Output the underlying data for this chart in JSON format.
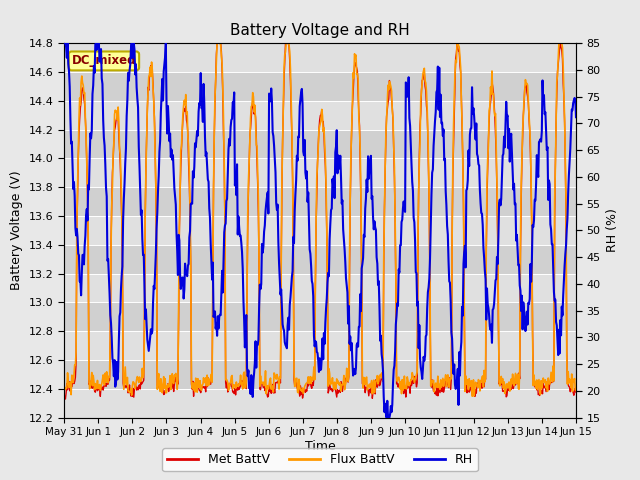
{
  "title": "Battery Voltage and RH",
  "xlabel": "Time",
  "ylabel_left": "Battery Voltage (V)",
  "ylabel_right": "RH (%)",
  "annotation": "DC_mixed",
  "ylim_left": [
    12.2,
    14.8
  ],
  "ylim_right": [
    15,
    85
  ],
  "yticks_left": [
    12.2,
    12.4,
    12.6,
    12.8,
    13.0,
    13.2,
    13.4,
    13.6,
    13.8,
    14.0,
    14.2,
    14.4,
    14.6,
    14.8
  ],
  "yticks_right": [
    15,
    20,
    25,
    30,
    35,
    40,
    45,
    50,
    55,
    60,
    65,
    70,
    75,
    80,
    85
  ],
  "xtick_labels": [
    "May 31",
    "Jun 1",
    "Jun 2",
    "Jun 3",
    "Jun 4",
    "Jun 5",
    "Jun 6",
    "Jun 7",
    "Jun 8",
    "Jun 9",
    "Jun 10",
    "Jun 11",
    "Jun 12",
    "Jun 13",
    "Jun 14",
    "Jun 15"
  ],
  "n_days": 15,
  "bg_color": "#e8e8e8",
  "plot_bg_color": "#d8d8d8",
  "stripe_colors": [
    "#e0e0e0",
    "#d0d0d0"
  ],
  "grid_color": "#ffffff",
  "line_colors": {
    "met": "#dd0000",
    "flux": "#ff9900",
    "rh": "#0000dd"
  },
  "line_widths": {
    "met": 1.0,
    "flux": 1.2,
    "rh": 1.5
  },
  "legend_labels": [
    "Met BattV",
    "Flux BattV",
    "RH"
  ],
  "annotation_bg": "#ffff99",
  "annotation_fg": "#880000",
  "annotation_border": "#bbaa00",
  "title_fontsize": 11,
  "axis_label_fontsize": 9,
  "tick_fontsize": 8,
  "legend_fontsize": 9
}
